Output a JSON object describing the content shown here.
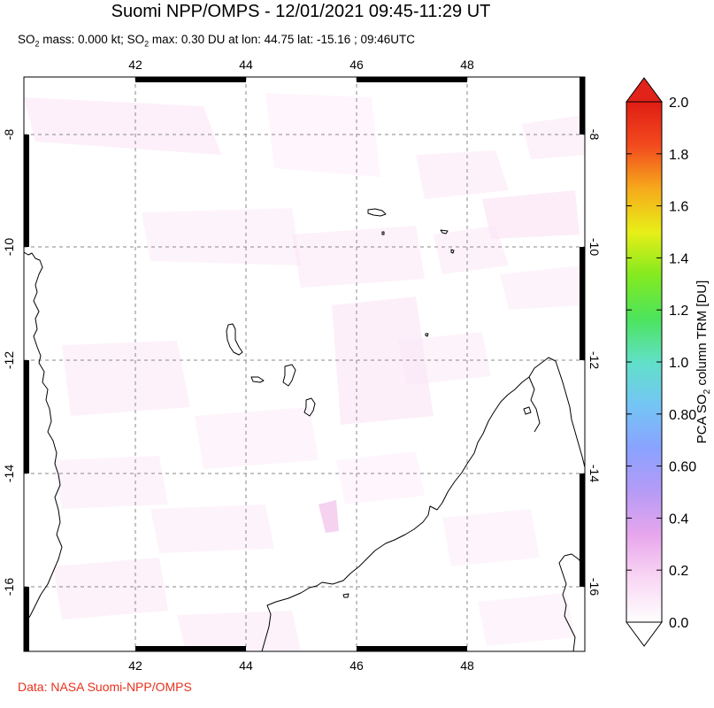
{
  "header": {
    "title": "Suomi NPP/OMPS - 12/01/2021 09:45-11:29 UT",
    "stats_line_parts": [
      "SO",
      "2",
      " mass: 0.000 kt; SO",
      "2",
      " max: 0.30 DU at lon: 44.75 lat: -15.16 ; 09:46UTC"
    ]
  },
  "map": {
    "lon_ticks": [
      "42",
      "44",
      "46",
      "48"
    ],
    "lat_ticks": [
      "-8",
      "-10",
      "-12",
      "-14",
      "-16"
    ],
    "lon_range": [
      39.9,
      50.1
    ],
    "lat_range": [
      -17.1,
      -6.9
    ],
    "gridlines": true,
    "background_color": "#ffffff",
    "coastline_color": "#000000"
  },
  "colorbar": {
    "label_parts": [
      "PCA SO",
      "2",
      " column TRM [DU]"
    ],
    "tick_labels": [
      "2.0",
      "1.8",
      "1.6",
      "1.4",
      "1.2",
      "1.0",
      "0.80",
      "0.60",
      "0.4",
      "0.2",
      "0.0"
    ],
    "min": 0.0,
    "max": 2.0,
    "colors": [
      "#fefefe",
      "#f9d7f4",
      "#e7a6ec",
      "#b69bf6",
      "#8aa2ff",
      "#74c5f5",
      "#61e0c8",
      "#4ce45c",
      "#83ea20",
      "#e8ee18",
      "#f6a91b",
      "#f24a1e",
      "#e01d14"
    ],
    "over_color": "#e2231a",
    "under_color": "#ffffff"
  },
  "footer": {
    "credit": "Data: NASA Suomi-NPP/OMPS"
  }
}
